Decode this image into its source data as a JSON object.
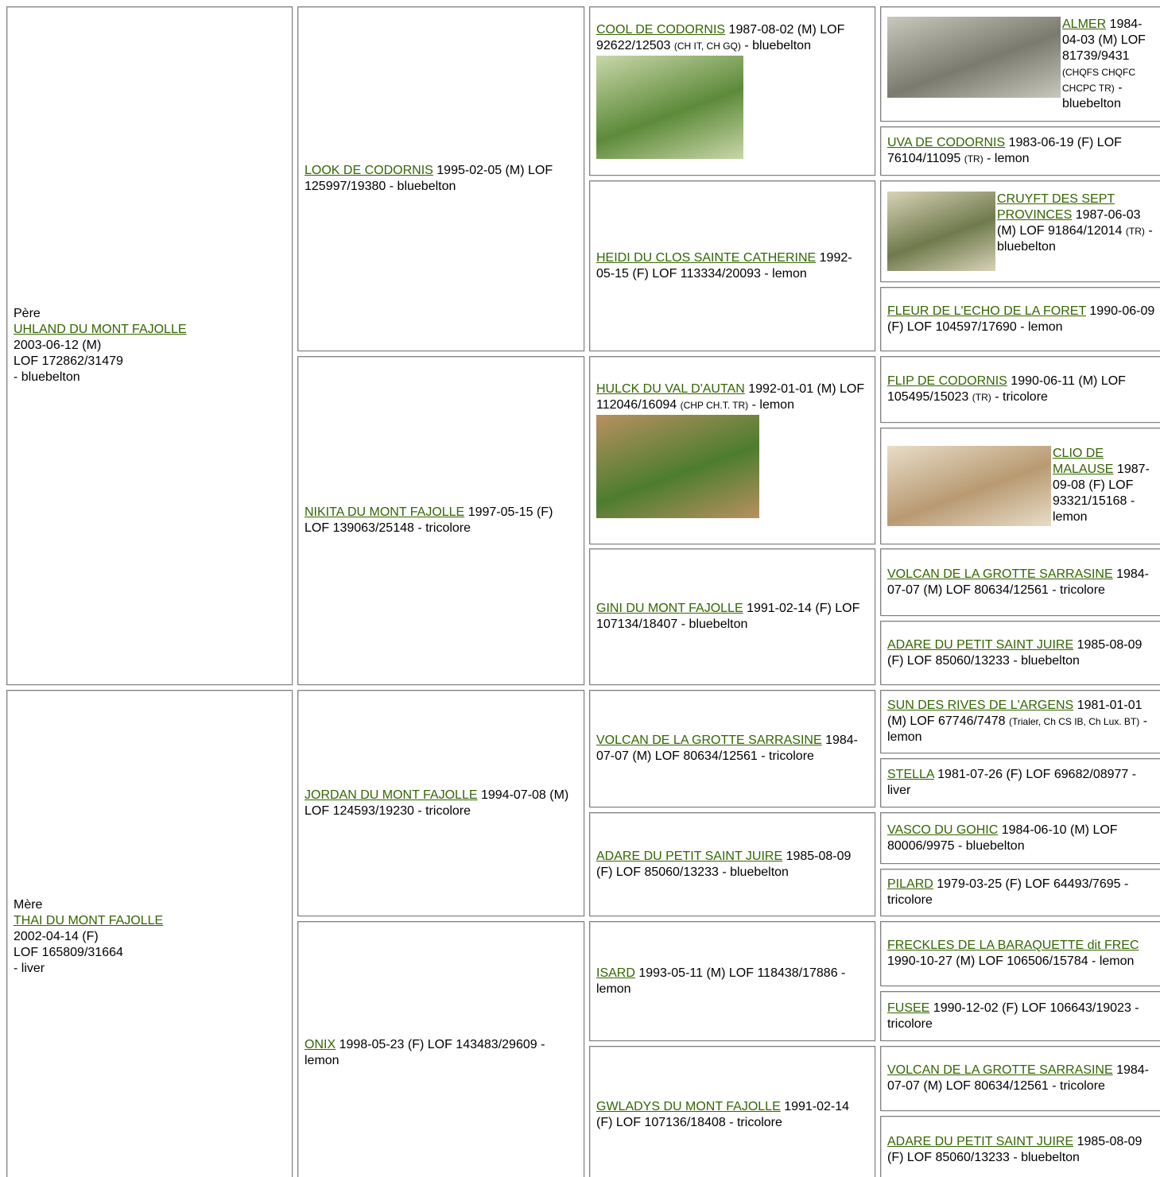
{
  "pedigree": [
    {
      "role": "Père",
      "name": "UHLAND DU MONT FAJOLLE",
      "lines": [
        "2003-06-12 (M)",
        "LOF 172862/31479",
        "- bluebelton"
      ]
    },
    {
      "name": "LOOK DE CODORNIS",
      "info": "1995-02-05 (M) LOF 125997/19380 - bluebelton"
    },
    {
      "name": "COOL DE CODORNIS",
      "info": "1987-08-02 (M) LOF 92622/12503",
      "titles": "(CH IT, CH GQ)",
      "tail": "- bluebelton"
    },
    {
      "name": "ALMER",
      "info": "1984-04-03 (M) LOF 81739/9431",
      "titles": "(CHQFS CHQFC CHCPC TR)",
      "tail": "- bluebelton"
    },
    {
      "name": "UVA DE CODORNIS",
      "info": "1983-06-19 (F) LOF 76104/11095",
      "titles": "(TR)",
      "tail": "- lemon"
    },
    {
      "name": "HEIDI DU CLOS SAINTE CATHERINE",
      "info": "1992-05-15 (F) LOF 113334/20093 - lemon"
    },
    {
      "name": "CRUYFT DES SEPT PROVINCES",
      "info": "1987-06-03 (M) LOF 91864/12014",
      "titles": "(TR)",
      "tail": "- bluebelton"
    },
    {
      "name": "FLEUR DE L'ECHO DE LA FORET",
      "info": "1990-06-09 (F) LOF 104597/17690 - lemon"
    },
    {
      "name": "NIKITA DU MONT FAJOLLE",
      "info": "1997-05-15 (F) LOF 139063/25148 - tricolore"
    },
    {
      "name": "HULCK DU VAL D'AUTAN",
      "info": "1992-01-01 (M) LOF 112046/16094",
      "titles": "(CHP CH.T. TR)",
      "tail": "- lemon"
    },
    {
      "name": "FLIP DE CODORNIS",
      "info": "1990-06-11 (M) LOF 105495/15023",
      "titles": "(TR)",
      "tail": "- tricolore"
    },
    {
      "name": "CLIO DE MALAUSE",
      "info": "1987-09-08 (F) LOF 93321/15168 - lemon"
    },
    {
      "name": "GINI DU MONT FAJOLLE",
      "info": "1991-02-14 (F) LOF 107134/18407 - bluebelton"
    },
    {
      "name": "VOLCAN DE LA GROTTE SARRASINE",
      "info": "1984-07-07 (M) LOF 80634/12561 - tricolore"
    },
    {
      "name": "ADARE DU PETIT SAINT JUIRE",
      "info": "1985-08-09 (F) LOF 85060/13233 - bluebelton"
    },
    {
      "role": "Mère",
      "name": "THAI DU MONT FAJOLLE",
      "lines": [
        "2002-04-14 (F)",
        "LOF 165809/31664",
        "- liver"
      ]
    },
    {
      "name": "JORDAN DU MONT FAJOLLE",
      "info": "1994-07-08 (M) LOF 124593/19230 - tricolore"
    },
    {
      "name": "VOLCAN DE LA GROTTE SARRASINE",
      "info": "1984-07-07 (M) LOF 80634/12561 - tricolore"
    },
    {
      "name": "SUN DES RIVES DE L'ARGENS",
      "info": "1981-01-01 (M) LOF 67746/7478",
      "titles": "(Trialer, Ch CS IB, Ch Lux. BT)",
      "tail": "- lemon"
    },
    {
      "name": "STELLA",
      "info": "1981-07-26 (F) LOF 69682/08977 - liver"
    },
    {
      "name": "ADARE DU PETIT SAINT JUIRE",
      "info": "1985-08-09 (F) LOF 85060/13233 - bluebelton"
    },
    {
      "name": "VASCO DU GOHIC",
      "info": "1984-06-10 (M) LOF 80006/9975 - bluebelton"
    },
    {
      "name": "PILARD",
      "info": "1979-03-25 (F) LOF 64493/7695 - tricolore"
    },
    {
      "name": "ONIX",
      "info": "1998-05-23 (F) LOF 143483/29609 - lemon"
    },
    {
      "name": "ISARD",
      "info": "1993-05-11 (M) LOF 118438/17886 - lemon"
    },
    {
      "name": "FRECKLES DE LA BARAQUETTE dit FREC",
      "info": "1990-10-27 (M) LOF 106506/15784 - lemon"
    },
    {
      "name": "FUSEE",
      "info": "1990-12-02 (F) LOF 106643/19023 - tricolore"
    },
    {
      "name": "GWLADYS DU MONT FAJOLLE",
      "info": "1991-02-14 (F) LOF 107136/18408 - tricolore"
    },
    {
      "name": "VOLCAN DE LA GROTTE SARRASINE",
      "info": "1984-07-07 (M) LOF 80634/12561 - tricolore"
    },
    {
      "name": "ADARE DU PETIT SAINT JUIRE",
      "info": "1985-08-09 (F) LOF 85060/13233 - bluebelton"
    }
  ]
}
